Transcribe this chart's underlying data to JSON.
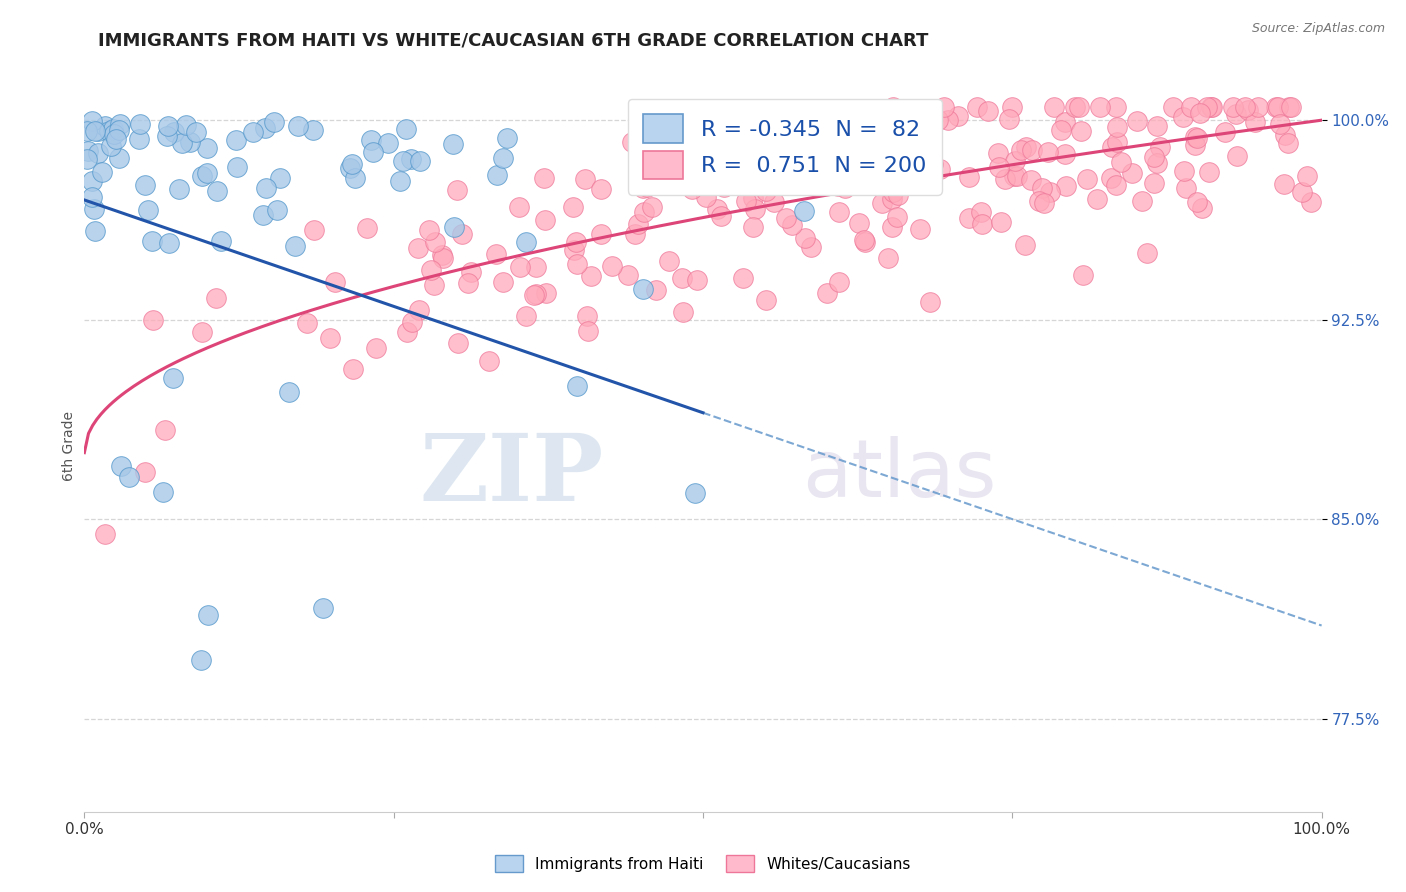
{
  "title": "IMMIGRANTS FROM HAITI VS WHITE/CAUCASIAN 6TH GRADE CORRELATION CHART",
  "source_text": "Source: ZipAtlas.com",
  "ylabel": "6th Grade",
  "x_min": 0.0,
  "x_max": 1.0,
  "y_min": 0.74,
  "y_max": 1.015,
  "y_ticks": [
    0.775,
    0.85,
    0.925,
    1.0
  ],
  "y_tick_labels": [
    "77.5%",
    "85.0%",
    "92.5%",
    "100.0%"
  ],
  "haiti_R": -0.345,
  "haiti_N": 82,
  "white_R": 0.751,
  "white_N": 200,
  "haiti_scatter_color": "#a8c8e8",
  "haiti_edge_color": "#5599cc",
  "white_scatter_color": "#ffaabb",
  "white_edge_color": "#ee7799",
  "trend_blue": "#2255aa",
  "trend_pink": "#dd4477",
  "dash_blue": "#6699cc",
  "watermark_zip": "ZIP",
  "watermark_atlas": "atlas",
  "watermark_color_zip": "#c8d8e8",
  "watermark_color_atlas": "#d0c8e0",
  "background_color": "#ffffff",
  "title_fontsize": 13,
  "label_fontsize": 10,
  "tick_fontsize": 11,
  "legend_fontsize": 16,
  "seed": 77
}
